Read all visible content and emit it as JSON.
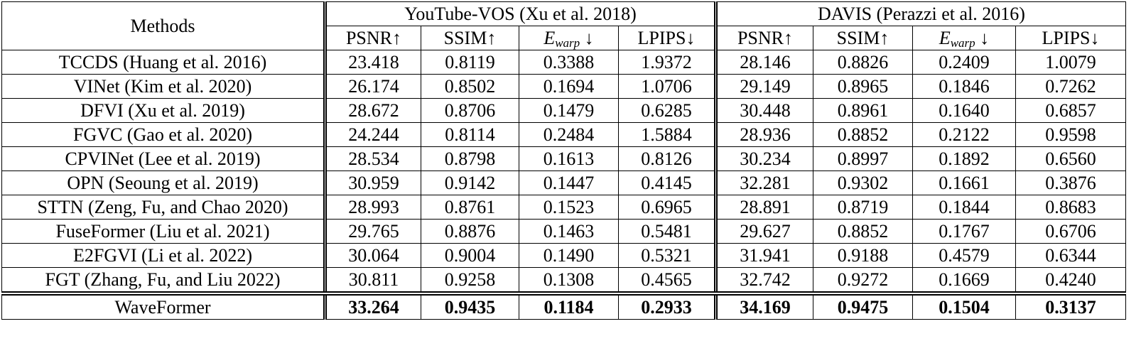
{
  "table": {
    "header": {
      "methods": "Methods",
      "groups": [
        {
          "title": "YouTube-VOS (Xu et al. 2018)",
          "columns": [
            "PSNR↑",
            "SSIM↑",
            {
              "symbol": "E",
              "subscript": "warp",
              "arrow": "↓"
            },
            "LPIPS↓"
          ]
        },
        {
          "title": "DAVIS (Perazzi et al. 2016)",
          "columns": [
            "PSNR↑",
            "SSIM↑",
            {
              "symbol": "E",
              "subscript": "warp",
              "arrow": "↓"
            },
            "LPIPS↓"
          ]
        }
      ]
    },
    "rows": [
      {
        "method": "TCCDS (Huang et al. 2016)",
        "values": [
          "23.418",
          "0.8119",
          "0.3388",
          "1.9372",
          "28.146",
          "0.8826",
          "0.2409",
          "1.0079"
        ]
      },
      {
        "method": "VINet (Kim et al. 2020)",
        "values": [
          "26.174",
          "0.8502",
          "0.1694",
          "1.0706",
          "29.149",
          "0.8965",
          "0.1846",
          "0.7262"
        ]
      },
      {
        "method": "DFVI (Xu et al. 2019)",
        "values": [
          "28.672",
          "0.8706",
          "0.1479",
          "0.6285",
          "30.448",
          "0.8961",
          "0.1640",
          "0.6857"
        ]
      },
      {
        "method": "FGVC (Gao et al. 2020)",
        "values": [
          "24.244",
          "0.8114",
          "0.2484",
          "1.5884",
          "28.936",
          "0.8852",
          "0.2122",
          "0.9598"
        ]
      },
      {
        "method": "CPVINet (Lee et al. 2019)",
        "values": [
          "28.534",
          "0.8798",
          "0.1613",
          "0.8126",
          "30.234",
          "0.8997",
          "0.1892",
          "0.6560"
        ]
      },
      {
        "method": "OPN (Seoung et al. 2019)",
        "values": [
          "30.959",
          "0.9142",
          "0.1447",
          "0.4145",
          "32.281",
          "0.9302",
          "0.1661",
          "0.3876"
        ]
      },
      {
        "method": "STTN (Zeng, Fu, and Chao 2020)",
        "values": [
          "28.993",
          "0.8761",
          "0.1523",
          "0.6965",
          "28.891",
          "0.8719",
          "0.1844",
          "0.8683"
        ]
      },
      {
        "method": "FuseFormer (Liu et al. 2021)",
        "values": [
          "29.765",
          "0.8876",
          "0.1463",
          "0.5481",
          "29.627",
          "0.8852",
          "0.1767",
          "0.6706"
        ]
      },
      {
        "method": "E2FGVI (Li et al. 2022)",
        "values": [
          "30.064",
          "0.9004",
          "0.1490",
          "0.5321",
          "31.941",
          "0.9188",
          "0.4579",
          "0.6344"
        ]
      },
      {
        "method": "FGT (Zhang, Fu, and Liu 2022)",
        "values": [
          "30.811",
          "0.9258",
          "0.1308",
          "0.4565",
          "32.742",
          "0.9272",
          "0.1669",
          "0.4240"
        ]
      }
    ],
    "final": {
      "method": "WaveFormer",
      "values": [
        "33.264",
        "0.9435",
        "0.1184",
        "0.2933",
        "34.169",
        "0.9475",
        "0.1504",
        "0.3137"
      ]
    }
  }
}
